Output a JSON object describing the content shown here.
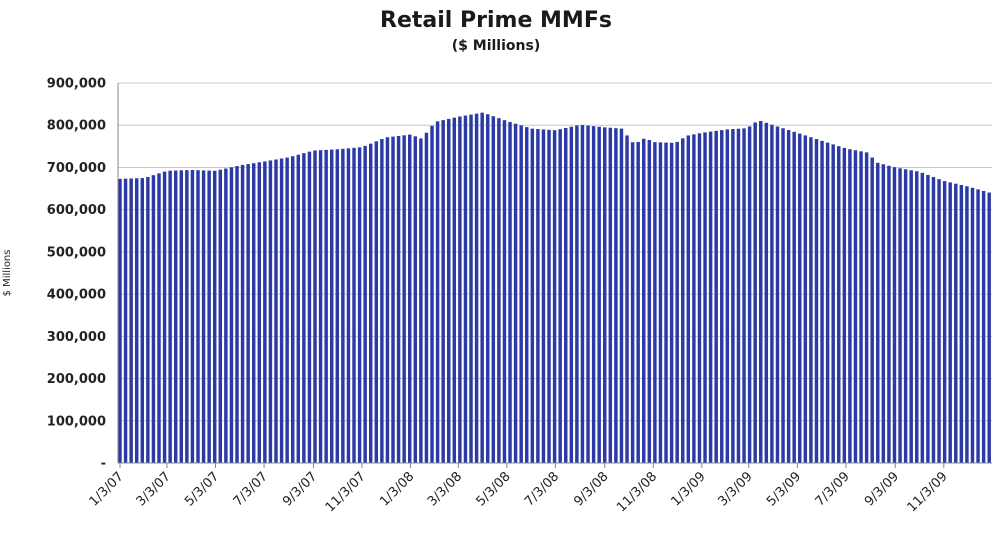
{
  "chart_data": {
    "type": "bar",
    "title": "Retail Prime MMFs",
    "subtitle": "($ Millions)",
    "ylabel": "$ Millions",
    "ylim": [
      0,
      900000
    ],
    "yticks": [
      {
        "value": 0,
        "label": "-"
      },
      {
        "value": 100000,
        "label": "100,000"
      },
      {
        "value": 200000,
        "label": "200,000"
      },
      {
        "value": 300000,
        "label": "300,000"
      },
      {
        "value": 400000,
        "label": "400,000"
      },
      {
        "value": 500000,
        "label": "500,000"
      },
      {
        "value": 600000,
        "label": "600,000"
      },
      {
        "value": 700000,
        "label": "700,000"
      },
      {
        "value": 800000,
        "label": "800,000"
      },
      {
        "value": 900000,
        "label": "900,000"
      }
    ],
    "grid": true,
    "bar_color": "#2b3aa6",
    "anchors": [
      [
        "2007-01-03",
        673000
      ],
      [
        "2007-02-03",
        675000
      ],
      [
        "2007-03-03",
        692000
      ],
      [
        "2007-04-03",
        694000
      ],
      [
        "2007-05-03",
        692000
      ],
      [
        "2007-06-03",
        705000
      ],
      [
        "2007-07-03",
        714000
      ],
      [
        "2007-08-03",
        724000
      ],
      [
        "2007-09-03",
        740000
      ],
      [
        "2007-10-03",
        743000
      ],
      [
        "2007-11-03",
        748000
      ],
      [
        "2007-12-03",
        771000
      ],
      [
        "2008-01-03",
        778000
      ],
      [
        "2008-01-17",
        768000
      ],
      [
        "2008-02-03",
        808000
      ],
      [
        "2008-03-03",
        820000
      ],
      [
        "2008-04-03",
        830000
      ],
      [
        "2008-05-03",
        810000
      ],
      [
        "2008-06-03",
        792000
      ],
      [
        "2008-07-03",
        788000
      ],
      [
        "2008-08-03",
        801000
      ],
      [
        "2008-09-03",
        795000
      ],
      [
        "2008-09-24",
        792000
      ],
      [
        "2008-10-10",
        755000
      ],
      [
        "2008-10-24",
        770000
      ],
      [
        "2008-11-03",
        760000
      ],
      [
        "2008-12-01",
        758000
      ],
      [
        "2008-12-15",
        775000
      ],
      [
        "2009-01-03",
        782000
      ],
      [
        "2009-02-03",
        790000
      ],
      [
        "2009-03-01",
        793000
      ],
      [
        "2009-03-15",
        812000
      ],
      [
        "2009-04-03",
        800000
      ],
      [
        "2009-05-03",
        782000
      ],
      [
        "2009-06-03",
        763000
      ],
      [
        "2009-07-03",
        745000
      ],
      [
        "2009-07-31",
        735000
      ],
      [
        "2009-08-10",
        712000
      ],
      [
        "2009-09-03",
        700000
      ],
      [
        "2009-10-03",
        690000
      ],
      [
        "2009-11-03",
        668000
      ],
      [
        "2009-12-03",
        655000
      ],
      [
        "2009-12-31",
        640000
      ]
    ],
    "x_start": "2007-01-03",
    "x_end": "2009-12-31",
    "xtick_labels": [
      "1/3/07",
      "3/3/07",
      "5/3/07",
      "7/3/07",
      "9/3/07",
      "11/3/07",
      "1/3/08",
      "3/3/08",
      "5/3/08",
      "7/3/08",
      "9/3/08",
      "11/3/08",
      "1/3/09",
      "3/3/09",
      "5/3/09",
      "7/3/09",
      "9/3/09",
      "11/3/09"
    ],
    "xtick_dates": [
      "2007-01-03",
      "2007-03-03",
      "2007-05-03",
      "2007-07-03",
      "2007-09-03",
      "2007-11-03",
      "2008-01-03",
      "2008-03-03",
      "2008-05-03",
      "2008-07-03",
      "2008-09-03",
      "2008-11-03",
      "2009-01-03",
      "2009-03-03",
      "2009-05-03",
      "2009-07-03",
      "2009-09-03",
      "2009-11-03"
    ]
  }
}
